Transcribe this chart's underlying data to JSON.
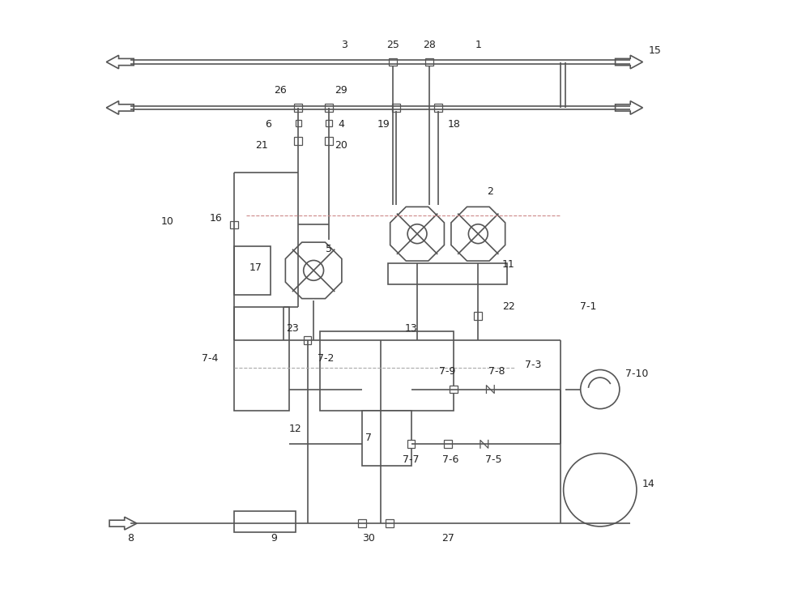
{
  "bg": "#ffffff",
  "lc": "#555555",
  "lw": 1.2,
  "fs": 9.0
}
